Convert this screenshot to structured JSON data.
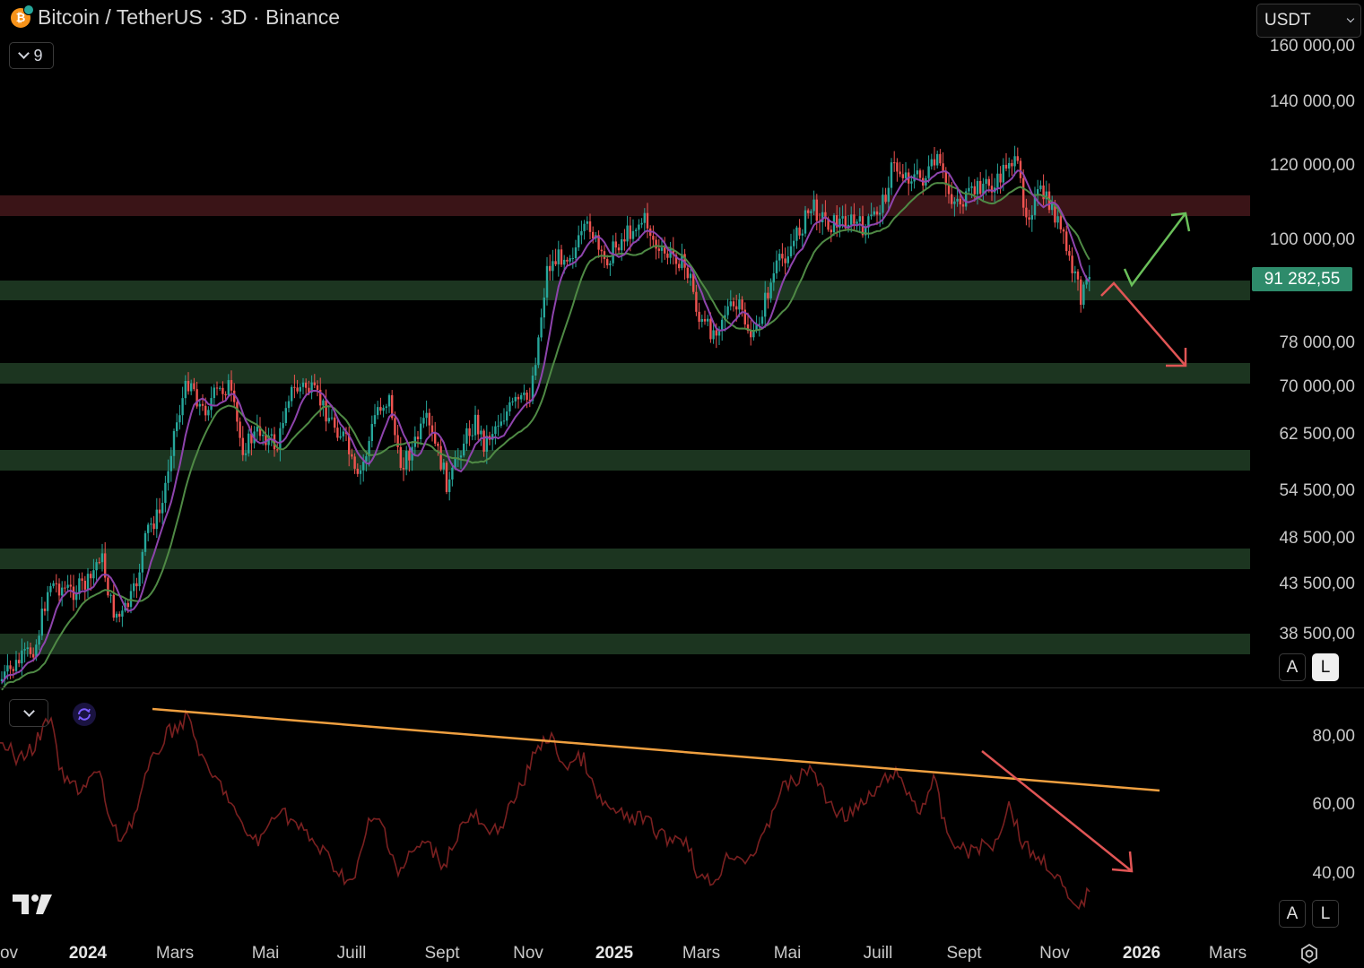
{
  "header": {
    "symbol_title": "Bitcoin / TetherUS · 3D · Binance",
    "btc_icon": "bitcoin-icon",
    "indicator_count": "9",
    "currency": "USDT"
  },
  "price_axis": {
    "labels": [
      "160 000,00",
      "140 000,00",
      "120 000,00",
      "100 000,00",
      "78 000,00",
      "70 000,00",
      "62 500,00",
      "54 500,00",
      "48 500,00",
      "43 500,00",
      "38 500,00"
    ],
    "last_price": "91 282,55",
    "last_price_color": "#2e8b6b"
  },
  "rsi_axis": {
    "labels": [
      "80,00",
      "60,00",
      "40,00"
    ]
  },
  "time_axis": {
    "labels": [
      "ov",
      "2024",
      "Mars",
      "Mai",
      "Juill",
      "Sept",
      "Nov",
      "2025",
      "Mars",
      "Mai",
      "Juill",
      "Sept",
      "Nov",
      "2026",
      "Mars"
    ]
  },
  "scale_buttons": {
    "auto": "A",
    "log": "L"
  },
  "colors": {
    "bull": "#26a69a",
    "bear": "#ef5350",
    "resistance_zone": "#3a1417",
    "support_zone": "#1c3520",
    "ma_fast": "#8e44ad",
    "ma_slow": "#4f8a45",
    "rsi_line": "#7a2020",
    "trendline": "#f0a040",
    "arrow_up": "#6abf5a",
    "arrow_down": "#e05555"
  },
  "icons": [
    "bitcoin-icon",
    "chevron-down-icon",
    "refresh-icon",
    "tradingview-logo",
    "settings-icon"
  ]
}
